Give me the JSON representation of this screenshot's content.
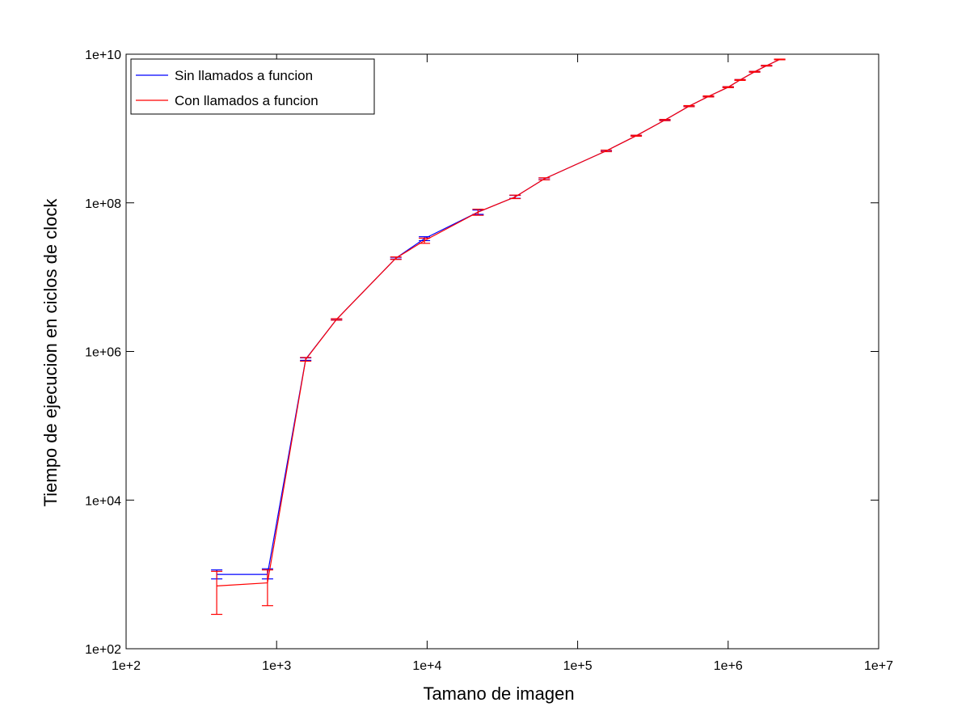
{
  "chart_data": {
    "type": "line",
    "title": "",
    "xlabel": "Tamano de imagen",
    "ylabel": "Tiempo de ejecucion en ciclos de clock",
    "xscale": "log",
    "yscale": "log",
    "xlim": [
      100,
      10000000
    ],
    "ylim": [
      100,
      10000000000
    ],
    "xticks": [
      100,
      1000,
      10000,
      100000,
      1000000,
      10000000
    ],
    "xtick_labels": [
      "1e+2",
      "1e+3",
      "1e+4",
      "1e+5",
      "1e+6",
      "1e+7"
    ],
    "yticks": [
      100,
      10000,
      1000000,
      100000000,
      10000000000
    ],
    "ytick_labels": [
      "1e+02",
      "1e+04",
      "1e+06",
      "1e+08",
      "1e+10"
    ],
    "grid": false,
    "legend_position": "top-left",
    "series": [
      {
        "name": "Sin llamados a funcion",
        "color": "#0000ff",
        "x": [
          400,
          870,
          1560,
          2500,
          6200,
          9600,
          21800,
          38400,
          60000,
          155000,
          245000,
          380000,
          550000,
          740000,
          1000000,
          1200000,
          1500000,
          1800000,
          2200000
        ],
        "y": [
          1000,
          1000,
          790000,
          2700000,
          18000000,
          33000000,
          75000000,
          120000000,
          210000000,
          500000000,
          800000000,
          1300000000,
          2000000000,
          2700000000,
          3600000000,
          4500000000,
          5800000000,
          7000000000,
          8500000000
        ],
        "err_low": [
          870,
          870,
          760000,
          2650000,
          17500000,
          31000000,
          70000000,
          115000000,
          205000000,
          490000000,
          790000000,
          1280000000,
          1970000000,
          2660000000,
          3550000000,
          4450000000,
          5740000000,
          6940000000,
          8420000000
        ],
        "err_high": [
          1150,
          1190,
          820000,
          2750000,
          18500000,
          35000000,
          80000000,
          126000000,
          216000000,
          510000000,
          810000000,
          1320000000,
          2030000000,
          2740000000,
          3650000000,
          4550000000,
          5860000000,
          7060000000,
          8580000000
        ]
      },
      {
        "name": "Con llamados a funcion",
        "color": "#ff0000",
        "x": [
          400,
          870,
          1560,
          2500,
          6200,
          9600,
          21800,
          38400,
          60000,
          155000,
          245000,
          380000,
          550000,
          740000,
          1000000,
          1200000,
          1500000,
          1800000,
          2200000
        ],
        "y": [
          700,
          770,
          780000,
          2700000,
          18000000,
          31000000,
          75000000,
          120000000,
          210000000,
          500000000,
          800000000,
          1300000000,
          2000000000,
          2700000000,
          3600000000,
          4500000000,
          5800000000,
          7000000000,
          8500000000
        ],
        "err_low": [
          290,
          380,
          740000,
          2640000,
          17300000,
          28500000,
          68000000,
          114000000,
          204000000,
          488000000,
          788000000,
          1275000000,
          1965000000,
          2655000000,
          3545000000,
          4440000000,
          5730000000,
          6930000000,
          8410000000
        ],
        "err_high": [
          1100,
          1150,
          830000,
          2760000,
          18700000,
          33500000,
          82000000,
          127000000,
          217000000,
          512000000,
          812000000,
          1325000000,
          2035000000,
          2745000000,
          3655000000,
          4560000000,
          5870000000,
          7070000000,
          8590000000
        ]
      }
    ]
  }
}
